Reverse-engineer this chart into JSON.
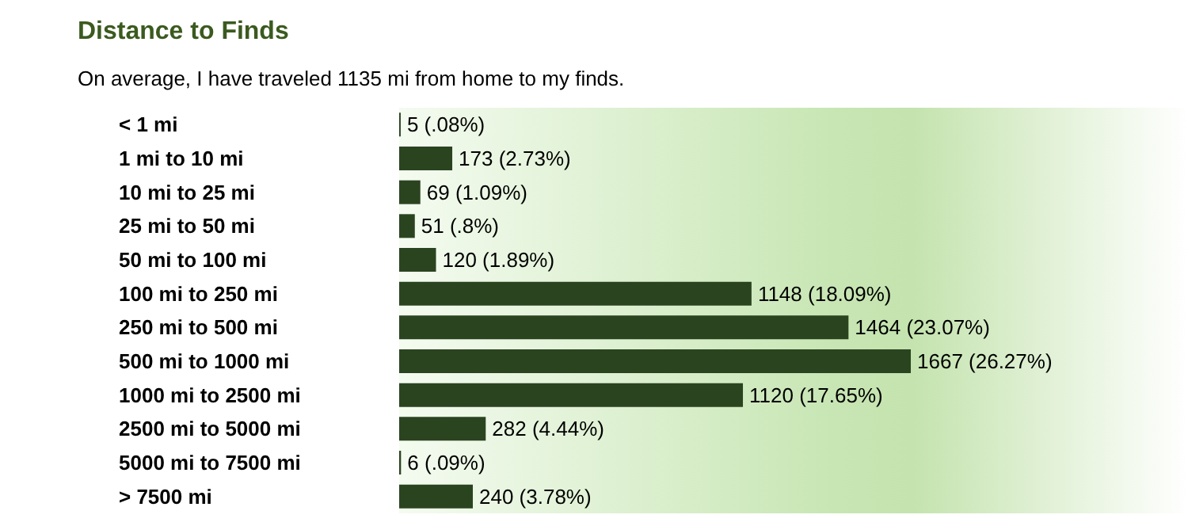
{
  "chart_data": {
    "type": "bar",
    "orientation": "horizontal",
    "title": "Distance to Finds",
    "subtitle": "On average, I have traveled 1135 mi from home to my finds.",
    "categories": [
      "< 1 mi",
      "1 mi to 10 mi",
      "10 mi to 25 mi",
      "25 mi to 50 mi",
      "50 mi to 100 mi",
      "100 mi to 250 mi",
      "250 mi to 500 mi",
      "500 mi to 1000 mi",
      "1000 mi to 2500 mi",
      "2500 mi to 5000 mi",
      "5000 mi to 7500 mi",
      "> 7500 mi"
    ],
    "values": [
      5,
      173,
      69,
      51,
      120,
      1148,
      1464,
      1667,
      1120,
      282,
      6,
      240
    ],
    "value_labels": [
      "5 (.08%)",
      "173 (2.73%)",
      "69 (1.09%)",
      "51 (.8%)",
      "120 (1.89%)",
      "1148 (18.09%)",
      "1464 (23.07%)",
      "1667 (26.27%)",
      "1120 (17.65%)",
      "282 (4.44%)",
      "6 (.09%)",
      "240 (3.78%)"
    ],
    "color": "#2b4420"
  }
}
